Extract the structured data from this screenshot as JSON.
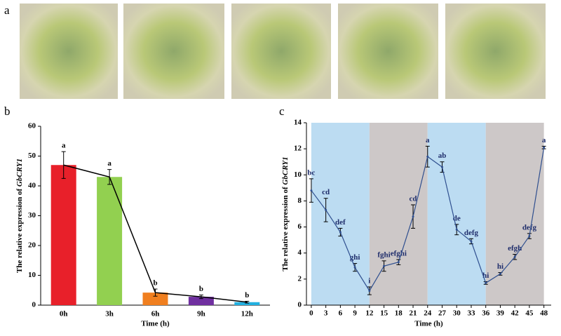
{
  "panel_labels": [
    "a",
    "b",
    "c"
  ],
  "chart_data": [
    {
      "type": "bar",
      "x_label": "Time (h)",
      "y_label": "The relative expression of ",
      "y_label_gene": "GbCRY1",
      "categories": [
        "0h",
        "3h",
        "6h",
        "9h",
        "12h"
      ],
      "values": [
        47,
        43,
        4.2,
        2.8,
        1.0
      ],
      "errors": [
        4.5,
        2.5,
        1.2,
        0.6,
        0.3
      ],
      "colors": [
        "#e8202a",
        "#92d050",
        "#f07f1f",
        "#7030a0",
        "#22b0e0"
      ],
      "annotations": [
        "a",
        "a",
        "b",
        "b",
        "b"
      ],
      "line_color": "#000000",
      "ylim": [
        0,
        60
      ],
      "yticks": [
        0,
        10,
        20,
        30,
        40,
        50,
        60
      ]
    },
    {
      "type": "line",
      "x_label": "Time (h)",
      "y_label": "The relative expression of ",
      "y_label_gene": "GbCRY1",
      "x": [
        0,
        3,
        6,
        9,
        12,
        15,
        18,
        21,
        24,
        27,
        30,
        33,
        36,
        39,
        42,
        45,
        48
      ],
      "values": [
        8.8,
        7.3,
        5.6,
        2.9,
        1.1,
        3.0,
        3.3,
        6.8,
        11.4,
        10.6,
        5.8,
        4.9,
        1.7,
        2.4,
        3.7,
        5.3,
        12.1
      ],
      "errors": [
        0.9,
        0.9,
        0.3,
        0.3,
        0.3,
        0.4,
        0.2,
        0.9,
        0.8,
        0.4,
        0.4,
        0.2,
        0.1,
        0.1,
        0.2,
        0.2,
        0.1
      ],
      "annotations": [
        "bc",
        "cd",
        "def",
        "ghi",
        "i",
        "fghi",
        "efghi",
        "cd",
        "a",
        "ab",
        "de",
        "defg",
        "hi",
        "hi",
        "efgh",
        "defg",
        "a"
      ],
      "color": "#2f4f8f",
      "annotation_color": "#1f2d6b",
      "shaded": [
        {
          "from": 0,
          "to": 12,
          "color": "#bcdcf2"
        },
        {
          "from": 12,
          "to": 24,
          "color": "#cdc8c8"
        },
        {
          "from": 24,
          "to": 36,
          "color": "#bcdcf2"
        },
        {
          "from": 36,
          "to": 48,
          "color": "#cdc8c8"
        }
      ],
      "xlim": [
        -1,
        49.5
      ],
      "xticks": [
        0,
        3,
        6,
        9,
        12,
        15,
        18,
        21,
        24,
        27,
        30,
        33,
        36,
        39,
        42,
        45,
        48
      ],
      "ylim": [
        0,
        14
      ],
      "yticks": [
        0,
        2,
        4,
        6,
        8,
        10,
        12,
        14
      ]
    }
  ]
}
